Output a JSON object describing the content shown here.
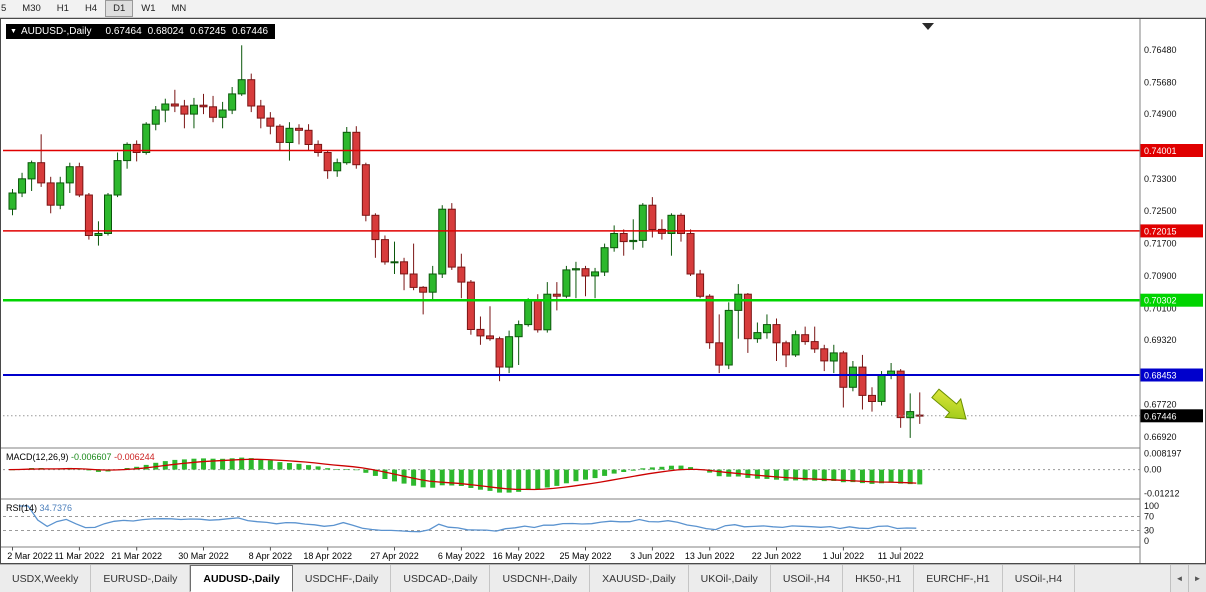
{
  "toolbar": {
    "timeframes": [
      {
        "label": "5",
        "active": false
      },
      {
        "label": "M30",
        "active": false
      },
      {
        "label": "H1",
        "active": false
      },
      {
        "label": "H4",
        "active": false
      },
      {
        "label": "D1",
        "active": true
      },
      {
        "label": "W1",
        "active": false
      },
      {
        "label": "MN",
        "active": false
      }
    ]
  },
  "chart": {
    "title": {
      "dropdown_glyph": "▼",
      "symbol": "AUDUSD-,Daily",
      "open": "0.67464",
      "high": "0.68024",
      "low": "0.67245",
      "close": "0.67446"
    }
  },
  "chart_data": {
    "type": "candlestick",
    "title": "AUDUSD-,Daily",
    "colors": {
      "up": "#2db82d",
      "up_stroke": "#0a570a",
      "down": "#d73c3c",
      "down_stroke": "#7a1414",
      "signal_line": "#cc0000",
      "rsi_line": "#5b93cf"
    },
    "price_axis": {
      "range": [
        0.6665,
        0.772
      ],
      "labels": [
        {
          "value": 0.7648,
          "text": "0.76480"
        },
        {
          "value": 0.7568,
          "text": "0.75680"
        },
        {
          "value": 0.749,
          "text": "0.74900"
        },
        {
          "value": 0.733,
          "text": "0.73300"
        },
        {
          "value": 0.725,
          "text": "0.72500"
        },
        {
          "value": 0.717,
          "text": "0.71700"
        },
        {
          "value": 0.709,
          "text": "0.70900"
        },
        {
          "value": 0.701,
          "text": "0.70100"
        },
        {
          "value": 0.6932,
          "text": "0.69320"
        },
        {
          "value": 0.6772,
          "text": "0.67720"
        },
        {
          "value": 0.6692,
          "text": "0.66920"
        }
      ]
    },
    "time_axis": {
      "ticks": [
        {
          "index": 0,
          "label": "2 Mar 2022"
        },
        {
          "index": 7,
          "label": "11 Mar 2022"
        },
        {
          "index": 13,
          "label": "21 Mar 2022"
        },
        {
          "index": 20,
          "label": "30 Mar 2022"
        },
        {
          "index": 27,
          "label": "8 Apr 2022"
        },
        {
          "index": 33,
          "label": "18 Apr 2022"
        },
        {
          "index": 40,
          "label": "27 Apr 2022"
        },
        {
          "index": 47,
          "label": "6 May 2022"
        },
        {
          "index": 53,
          "label": "16 May 2022"
        },
        {
          "index": 60,
          "label": "25 May 2022"
        },
        {
          "index": 67,
          "label": "3 Jun 2022"
        },
        {
          "index": 73,
          "label": "13 Jun 2022"
        },
        {
          "index": 80,
          "label": "22 Jun 2022"
        },
        {
          "index": 87,
          "label": "1 Jul 2022"
        },
        {
          "index": 93,
          "label": "11 Jul 2022"
        }
      ]
    },
    "candles": [
      [
        0.7255,
        0.7305,
        0.724,
        0.7295
      ],
      [
        0.7295,
        0.7345,
        0.7285,
        0.733
      ],
      [
        0.733,
        0.7375,
        0.73,
        0.737
      ],
      [
        0.737,
        0.744,
        0.731,
        0.732
      ],
      [
        0.732,
        0.7335,
        0.7245,
        0.7265
      ],
      [
        0.7265,
        0.7335,
        0.7255,
        0.732
      ],
      [
        0.732,
        0.737,
        0.7295,
        0.736
      ],
      [
        0.736,
        0.737,
        0.7285,
        0.729
      ],
      [
        0.729,
        0.7295,
        0.718,
        0.719
      ],
      [
        0.719,
        0.7225,
        0.7165,
        0.7195
      ],
      [
        0.7195,
        0.7295,
        0.719,
        0.729
      ],
      [
        0.729,
        0.7395,
        0.7285,
        0.7375
      ],
      [
        0.7375,
        0.742,
        0.7355,
        0.7415
      ],
      [
        0.7415,
        0.7425,
        0.7373,
        0.7395
      ],
      [
        0.7395,
        0.747,
        0.739,
        0.7465
      ],
      [
        0.7465,
        0.751,
        0.745,
        0.75
      ],
      [
        0.75,
        0.7528,
        0.747,
        0.7515
      ],
      [
        0.7515,
        0.755,
        0.7495,
        0.751
      ],
      [
        0.751,
        0.7525,
        0.7455,
        0.749
      ],
      [
        0.749,
        0.753,
        0.7455,
        0.7512
      ],
      [
        0.7512,
        0.754,
        0.749,
        0.7508
      ],
      [
        0.7508,
        0.7535,
        0.747,
        0.7482
      ],
      [
        0.7482,
        0.752,
        0.7455,
        0.75
      ],
      [
        0.75,
        0.7557,
        0.749,
        0.754
      ],
      [
        0.754,
        0.766,
        0.7535,
        0.7575
      ],
      [
        0.7575,
        0.759,
        0.7495,
        0.751
      ],
      [
        0.751,
        0.7525,
        0.7455,
        0.748
      ],
      [
        0.748,
        0.7495,
        0.744,
        0.746
      ],
      [
        0.746,
        0.7465,
        0.74,
        0.742
      ],
      [
        0.742,
        0.747,
        0.7375,
        0.7455
      ],
      [
        0.7455,
        0.7465,
        0.7415,
        0.745
      ],
      [
        0.745,
        0.7465,
        0.74,
        0.7415
      ],
      [
        0.7415,
        0.7425,
        0.7385,
        0.7395
      ],
      [
        0.7395,
        0.74,
        0.733,
        0.735
      ],
      [
        0.735,
        0.738,
        0.7335,
        0.737
      ],
      [
        0.737,
        0.7458,
        0.7365,
        0.7445
      ],
      [
        0.7445,
        0.746,
        0.7355,
        0.7365
      ],
      [
        0.7365,
        0.737,
        0.7225,
        0.724
      ],
      [
        0.724,
        0.7245,
        0.7135,
        0.718
      ],
      [
        0.718,
        0.719,
        0.7118,
        0.7125
      ],
      [
        0.7125,
        0.7175,
        0.7095,
        0.7125
      ],
      [
        0.7125,
        0.7135,
        0.7055,
        0.7095
      ],
      [
        0.7095,
        0.717,
        0.7055,
        0.7062
      ],
      [
        0.7062,
        0.7065,
        0.6995,
        0.705
      ],
      [
        0.705,
        0.7115,
        0.703,
        0.7095
      ],
      [
        0.7095,
        0.7265,
        0.7085,
        0.7255
      ],
      [
        0.7255,
        0.727,
        0.7105,
        0.7112
      ],
      [
        0.7112,
        0.7145,
        0.7035,
        0.7075
      ],
      [
        0.7075,
        0.708,
        0.6945,
        0.6958
      ],
      [
        0.6958,
        0.699,
        0.692,
        0.6942
      ],
      [
        0.6942,
        0.7015,
        0.693,
        0.6935
      ],
      [
        0.6935,
        0.694,
        0.683,
        0.6865
      ],
      [
        0.6865,
        0.6955,
        0.685,
        0.694
      ],
      [
        0.694,
        0.698,
        0.687,
        0.697
      ],
      [
        0.697,
        0.7035,
        0.6965,
        0.7028
      ],
      [
        0.7028,
        0.7045,
        0.695,
        0.6957
      ],
      [
        0.6957,
        0.7075,
        0.695,
        0.7045
      ],
      [
        0.7045,
        0.7075,
        0.7005,
        0.704
      ],
      [
        0.704,
        0.7115,
        0.7035,
        0.7105
      ],
      [
        0.7105,
        0.7125,
        0.7035,
        0.7108
      ],
      [
        0.7108,
        0.7115,
        0.704,
        0.709
      ],
      [
        0.709,
        0.711,
        0.7035,
        0.71
      ],
      [
        0.71,
        0.717,
        0.709,
        0.716
      ],
      [
        0.716,
        0.7215,
        0.715,
        0.7195
      ],
      [
        0.7195,
        0.7205,
        0.714,
        0.7175
      ],
      [
        0.7175,
        0.723,
        0.7155,
        0.7178
      ],
      [
        0.7178,
        0.727,
        0.716,
        0.7265
      ],
      [
        0.7265,
        0.7285,
        0.7185,
        0.7205
      ],
      [
        0.7205,
        0.723,
        0.718,
        0.7195
      ],
      [
        0.7195,
        0.7245,
        0.714,
        0.724
      ],
      [
        0.724,
        0.7245,
        0.7175,
        0.7195
      ],
      [
        0.7195,
        0.7205,
        0.709,
        0.7095
      ],
      [
        0.7095,
        0.7105,
        0.7035,
        0.704
      ],
      [
        0.704,
        0.7045,
        0.691,
        0.6925
      ],
      [
        0.6925,
        0.6995,
        0.685,
        0.687
      ],
      [
        0.687,
        0.7025,
        0.686,
        0.7005
      ],
      [
        0.7005,
        0.707,
        0.6935,
        0.7045
      ],
      [
        0.7045,
        0.7048,
        0.69,
        0.6935
      ],
      [
        0.6935,
        0.6975,
        0.6925,
        0.695
      ],
      [
        0.695,
        0.6995,
        0.6935,
        0.697
      ],
      [
        0.697,
        0.6985,
        0.688,
        0.6925
      ],
      [
        0.6925,
        0.693,
        0.6865,
        0.6895
      ],
      [
        0.6895,
        0.6955,
        0.689,
        0.6945
      ],
      [
        0.6945,
        0.6965,
        0.692,
        0.6928
      ],
      [
        0.6928,
        0.6965,
        0.69,
        0.691
      ],
      [
        0.691,
        0.692,
        0.6855,
        0.688
      ],
      [
        0.688,
        0.692,
        0.685,
        0.69
      ],
      [
        0.69,
        0.6905,
        0.6765,
        0.6815
      ],
      [
        0.6815,
        0.688,
        0.6805,
        0.6865
      ],
      [
        0.6865,
        0.6895,
        0.676,
        0.6795
      ],
      [
        0.6795,
        0.6815,
        0.6755,
        0.678
      ],
      [
        0.678,
        0.6855,
        0.677,
        0.6845
      ],
      [
        0.6845,
        0.6875,
        0.6835,
        0.6855
      ],
      [
        0.6855,
        0.686,
        0.6715,
        0.674
      ],
      [
        0.674,
        0.68,
        0.669,
        0.6755
      ],
      [
        0.67464,
        0.68024,
        0.67245,
        0.67446
      ]
    ],
    "levels": [
      {
        "value": 0.74001,
        "label": "0.74001",
        "color": "#e00000",
        "width": 1.5
      },
      {
        "value": 0.72015,
        "label": "0.72015",
        "color": "#e00000",
        "width": 1.5
      },
      {
        "value": 0.70302,
        "label": "0.70302",
        "color": "#00d400",
        "width": 2.5
      },
      {
        "value": 0.68453,
        "label": "0.68453",
        "color": "#0000cc",
        "width": 2
      }
    ],
    "current_price": {
      "value": 0.67446,
      "label": "0.67446",
      "color": "#000000"
    },
    "indicators": {
      "macd": {
        "label": "MACD(12,26,9)",
        "value_main": "-0.006607",
        "value_signal": "-0.006244",
        "range": [
          -0.0135,
          0.009
        ],
        "axis_labels": [
          {
            "value": 0.008197,
            "text": "0.008197"
          },
          {
            "value": 0,
            "text": "0.00"
          },
          {
            "value": -0.01212,
            "text": "-0.01212"
          }
        ]
      },
      "rsi": {
        "label": "RSI(14)",
        "value": "34.7376",
        "guides": [
          70,
          30
        ],
        "axis_labels": [
          {
            "value": 100,
            "text": "100"
          },
          {
            "value": 70,
            "text": "70"
          },
          {
            "value": 30,
            "text": "30"
          },
          {
            "value": 0,
            "text": "0"
          }
        ]
      }
    },
    "annotation": {
      "type": "arrow",
      "direction": "down-right",
      "x_index": 97,
      "price": 0.68,
      "fill_from": "#e8ea3f",
      "fill_to": "#8fc412",
      "stroke": "#6b8f00"
    }
  },
  "tabs": {
    "items": [
      {
        "label": "USDX,Weekly",
        "active": false
      },
      {
        "label": "EURUSD-,Daily",
        "active": false
      },
      {
        "label": "AUDUSD-,Daily",
        "active": true
      },
      {
        "label": "USDCHF-,Daily",
        "active": false
      },
      {
        "label": "USDCAD-,Daily",
        "active": false
      },
      {
        "label": "USDCNH-,Daily",
        "active": false
      },
      {
        "label": "XAUUSD-,Daily",
        "active": false
      },
      {
        "label": "UKOil-,Daily",
        "active": false
      },
      {
        "label": "USOil-,H4",
        "active": false
      },
      {
        "label": "HK50-,H1",
        "active": false
      },
      {
        "label": "EURCHF-,H1",
        "active": false
      },
      {
        "label": "USOil-,H4",
        "active": false
      }
    ],
    "scroll_left": "◄",
    "scroll_right": "►"
  }
}
